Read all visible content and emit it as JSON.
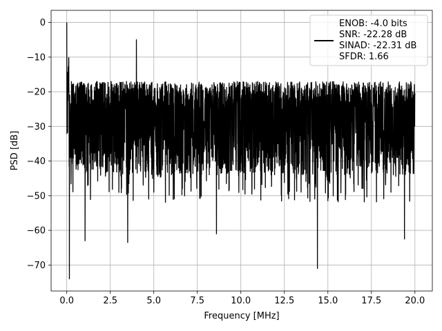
{
  "chart_data": {
    "type": "line",
    "title": "",
    "xlabel": "Frequency [MHz]",
    "ylabel": "PSD [dB]",
    "xlim": [
      -0.9,
      21.0
    ],
    "ylim": [
      -77.5,
      3.5
    ],
    "xticks": [
      0.0,
      2.5,
      5.0,
      7.5,
      10.0,
      12.5,
      15.0,
      17.5,
      20.0
    ],
    "xtick_labels": [
      "0.0",
      "2.5",
      "5.0",
      "7.5",
      "10.0",
      "12.5",
      "15.0",
      "17.5",
      "20.0"
    ],
    "yticks": [
      0,
      -10,
      -20,
      -30,
      -40,
      -50,
      -60,
      -70
    ],
    "ytick_labels": [
      "0",
      "−10",
      "−20",
      "−30",
      "−40",
      "−50",
      "−60",
      "−70"
    ],
    "grid": true,
    "legend_position": "top-right",
    "legend_lines": [
      "ENOB: -4.0 bits",
      "SNR: -22.28 dB",
      "SINAD: -22.31 dB",
      "SFDR: 1.66"
    ],
    "series": [
      {
        "color": "#000000",
        "description": "dense noisy PSD from 0 to 20 MHz; envelope roughly -15..-20 dB top, -40..-50 dB bottom",
        "peaks": [
          {
            "x": 0.0,
            "y": 0.0
          },
          {
            "x": 4.0,
            "y": -5.0
          },
          {
            "x": 0.15,
            "y": -74.0
          },
          {
            "x": 3.5,
            "y": -63.5
          },
          {
            "x": 14.4,
            "y": -71.0
          },
          {
            "x": 8.6,
            "y": -61.0
          },
          {
            "x": 1.05,
            "y": -63.0
          },
          {
            "x": 19.4,
            "y": -62.5
          }
        ],
        "x_range": [
          0.0,
          20.0
        ]
      }
    ]
  }
}
